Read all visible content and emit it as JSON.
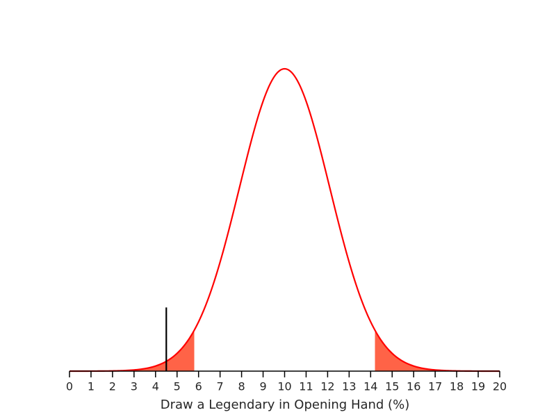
{
  "chart_data": {
    "type": "normal",
    "x_label": "Draw a Legendary in Opening Hand (%)",
    "mean": 10,
    "sd": 2.1,
    "color": "#ff0000",
    "shade_color": "#ff6347",
    "shade_below": 5.8,
    "shade_above": 14.2,
    "marker_x": 4.5,
    "marker_height": 0.04,
    "marker_color": "#000000",
    "xlim": [
      0,
      20
    ],
    "xticks": [
      0,
      1,
      2,
      3,
      4,
      5,
      6,
      7,
      8,
      9,
      10,
      11,
      12,
      13,
      14,
      15,
      16,
      17,
      18,
      19,
      20
    ],
    "ylim": [
      0,
      0.2
    ]
  }
}
